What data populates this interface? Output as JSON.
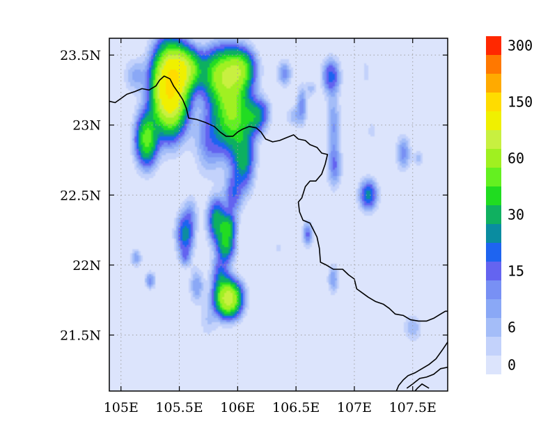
{
  "chart_data": {
    "type": "heatmap",
    "title": "",
    "xlabel": "",
    "ylabel": "",
    "xlim": [
      104.9,
      107.8
    ],
    "ylim": [
      21.1,
      23.62
    ],
    "grid": true,
    "x_ticks": [
      {
        "value": 105.0,
        "label": "105E"
      },
      {
        "value": 105.5,
        "label": "105.5E"
      },
      {
        "value": 106.0,
        "label": "106E"
      },
      {
        "value": 106.5,
        "label": "106.5E"
      },
      {
        "value": 107.0,
        "label": "107E"
      },
      {
        "value": 107.5,
        "label": "107.5E"
      }
    ],
    "y_ticks": [
      {
        "value": 21.5,
        "label": "21.5N"
      },
      {
        "value": 22.0,
        "label": "22N"
      },
      {
        "value": 22.5,
        "label": "22.5N"
      },
      {
        "value": 23.0,
        "label": "23N"
      },
      {
        "value": 23.5,
        "label": "23.5N"
      }
    ],
    "background_value": 0,
    "colorbar": {
      "levels": [
        0,
        3,
        6,
        9,
        12,
        15,
        20,
        25,
        30,
        40,
        50,
        60,
        80,
        100,
        150,
        200,
        250,
        300
      ],
      "colors": [
        "#dce4fc",
        "#c3d2fb",
        "#a4bdf8",
        "#8aa8f6",
        "#7890f4",
        "#6464f0",
        "#1e64f0",
        "#0a8ca0",
        "#10b060",
        "#20dc20",
        "#64f020",
        "#a0f020",
        "#c8f040",
        "#f0f000",
        "#ffdc00",
        "#ffaa00",
        "#ff7800",
        "#ff2800"
      ],
      "labels": [
        {
          "value": 0,
          "label": "0"
        },
        {
          "value": 6,
          "label": "6"
        },
        {
          "value": 15,
          "label": "15"
        },
        {
          "value": 30,
          "label": "30"
        },
        {
          "value": 60,
          "label": "60"
        },
        {
          "value": 150,
          "label": "150"
        },
        {
          "value": 300,
          "label": "300"
        }
      ]
    },
    "features": [
      {
        "lon": 105.42,
        "lat": 23.26,
        "peak": 160,
        "slon": 0.09,
        "slat": 0.18
      },
      {
        "lon": 105.55,
        "lat": 23.4,
        "peak": 70,
        "slon": 0.09,
        "slat": 0.09
      },
      {
        "lon": 105.22,
        "lat": 22.9,
        "peak": 55,
        "slon": 0.06,
        "slat": 0.12
      },
      {
        "lon": 105.12,
        "lat": 23.35,
        "peak": 10,
        "slon": 0.06,
        "slat": 0.08
      },
      {
        "lon": 105.85,
        "lat": 23.36,
        "peak": 58,
        "slon": 0.1,
        "slat": 0.12
      },
      {
        "lon": 106.02,
        "lat": 23.4,
        "peak": 55,
        "slon": 0.08,
        "slat": 0.09
      },
      {
        "lon": 105.95,
        "lat": 23.1,
        "peak": 62,
        "slon": 0.1,
        "slat": 0.18
      },
      {
        "lon": 106.15,
        "lat": 23.06,
        "peak": 30,
        "slon": 0.06,
        "slat": 0.08
      },
      {
        "lon": 105.75,
        "lat": 22.9,
        "peak": 14,
        "slon": 0.08,
        "slat": 0.16
      },
      {
        "lon": 106.05,
        "lat": 22.75,
        "peak": 30,
        "slon": 0.06,
        "slat": 0.14
      },
      {
        "lon": 105.96,
        "lat": 22.5,
        "peak": 18,
        "slon": 0.05,
        "slat": 0.1
      },
      {
        "lon": 106.4,
        "lat": 23.37,
        "peak": 14,
        "slon": 0.04,
        "slat": 0.06
      },
      {
        "lon": 106.8,
        "lat": 23.35,
        "peak": 22,
        "slon": 0.05,
        "slat": 0.08
      },
      {
        "lon": 106.82,
        "lat": 23.0,
        "peak": 12,
        "slon": 0.04,
        "slat": 0.16
      },
      {
        "lon": 106.55,
        "lat": 23.14,
        "peak": 14,
        "slon": 0.03,
        "slat": 0.09
      },
      {
        "lon": 106.83,
        "lat": 22.7,
        "peak": 14,
        "slon": 0.04,
        "slat": 0.1
      },
      {
        "lon": 107.12,
        "lat": 22.5,
        "peak": 28,
        "slon": 0.05,
        "slat": 0.07
      },
      {
        "lon": 107.42,
        "lat": 22.8,
        "peak": 14,
        "slon": 0.04,
        "slat": 0.08
      },
      {
        "lon": 107.55,
        "lat": 22.76,
        "peak": 7,
        "slon": 0.03,
        "slat": 0.04
      },
      {
        "lon": 105.82,
        "lat": 22.32,
        "peak": 35,
        "slon": 0.05,
        "slat": 0.1
      },
      {
        "lon": 105.9,
        "lat": 22.15,
        "peak": 38,
        "slon": 0.05,
        "slat": 0.08
      },
      {
        "lon": 105.92,
        "lat": 22.28,
        "peak": 30,
        "slon": 0.04,
        "slat": 0.06
      },
      {
        "lon": 105.55,
        "lat": 22.22,
        "peak": 28,
        "slon": 0.05,
        "slat": 0.1
      },
      {
        "lon": 105.6,
        "lat": 22.38,
        "peak": 8,
        "slon": 0.04,
        "slat": 0.08
      },
      {
        "lon": 105.85,
        "lat": 21.93,
        "peak": 20,
        "slon": 0.05,
        "slat": 0.09
      },
      {
        "lon": 105.92,
        "lat": 21.76,
        "peak": 95,
        "slon": 0.07,
        "slat": 0.08
      },
      {
        "lon": 105.65,
        "lat": 21.85,
        "peak": 12,
        "slon": 0.04,
        "slat": 0.08
      },
      {
        "lon": 105.75,
        "lat": 21.6,
        "peak": 6,
        "slon": 0.05,
        "slat": 0.08
      },
      {
        "lon": 105.13,
        "lat": 22.05,
        "peak": 12,
        "slon": 0.03,
        "slat": 0.04
      },
      {
        "lon": 105.25,
        "lat": 21.89,
        "peak": 14,
        "slon": 0.03,
        "slat": 0.04
      },
      {
        "lon": 105.55,
        "lat": 22.05,
        "peak": 10,
        "slon": 0.03,
        "slat": 0.04
      },
      {
        "lon": 106.6,
        "lat": 22.22,
        "peak": 16,
        "slon": 0.03,
        "slat": 0.06
      },
      {
        "lon": 106.82,
        "lat": 21.9,
        "peak": 12,
        "slon": 0.03,
        "slat": 0.07
      },
      {
        "lon": 107.5,
        "lat": 21.55,
        "peak": 9,
        "slon": 0.05,
        "slat": 0.06
      },
      {
        "lon": 107.1,
        "lat": 23.38,
        "peak": 6,
        "slon": 0.02,
        "slat": 0.05
      },
      {
        "lon": 107.15,
        "lat": 22.96,
        "peak": 6,
        "slon": 0.02,
        "slat": 0.04
      },
      {
        "lon": 106.35,
        "lat": 22.12,
        "peak": 5,
        "slon": 0.02,
        "slat": 0.03
      },
      {
        "lon": 106.48,
        "lat": 23.06,
        "peak": 8,
        "slon": 0.04,
        "slat": 0.05
      },
      {
        "lon": 106.63,
        "lat": 23.26,
        "peak": 7,
        "slon": 0.03,
        "slat": 0.04
      },
      {
        "lon": 106.23,
        "lat": 23.1,
        "peak": 8,
        "slon": 0.04,
        "slat": 0.06
      }
    ],
    "boundary": [
      [
        104.9,
        23.17
      ],
      [
        104.95,
        23.16
      ],
      [
        105.0,
        23.19
      ],
      [
        105.05,
        23.22
      ],
      [
        105.12,
        23.24
      ],
      [
        105.18,
        23.26
      ],
      [
        105.24,
        23.25
      ],
      [
        105.3,
        23.28
      ],
      [
        105.33,
        23.32
      ],
      [
        105.37,
        23.35
      ],
      [
        105.42,
        23.33
      ],
      [
        105.45,
        23.28
      ],
      [
        105.5,
        23.22
      ],
      [
        105.53,
        23.18
      ],
      [
        105.56,
        23.12
      ],
      [
        105.58,
        23.05
      ],
      [
        105.65,
        23.04
      ],
      [
        105.72,
        23.02
      ],
      [
        105.8,
        22.99
      ],
      [
        105.85,
        22.95
      ],
      [
        105.9,
        22.92
      ],
      [
        105.96,
        22.92
      ],
      [
        106.0,
        22.95
      ],
      [
        106.04,
        22.97
      ],
      [
        106.1,
        22.99
      ],
      [
        106.16,
        22.98
      ],
      [
        106.2,
        22.95
      ],
      [
        106.24,
        22.9
      ],
      [
        106.3,
        22.88
      ],
      [
        106.36,
        22.89
      ],
      [
        106.42,
        22.91
      ],
      [
        106.48,
        22.93
      ],
      [
        106.52,
        22.9
      ],
      [
        106.58,
        22.89
      ],
      [
        106.62,
        22.86
      ],
      [
        106.68,
        22.84
      ],
      [
        106.72,
        22.8
      ],
      [
        106.77,
        22.79
      ],
      [
        106.75,
        22.72
      ],
      [
        106.72,
        22.65
      ],
      [
        106.67,
        22.6
      ],
      [
        106.62,
        22.6
      ],
      [
        106.58,
        22.56
      ],
      [
        106.55,
        22.48
      ],
      [
        106.52,
        22.45
      ],
      [
        106.53,
        22.38
      ],
      [
        106.56,
        22.32
      ],
      [
        106.62,
        22.3
      ],
      [
        106.65,
        22.25
      ],
      [
        106.68,
        22.2
      ],
      [
        106.7,
        22.12
      ],
      [
        106.71,
        22.02
      ],
      [
        106.76,
        22.0
      ],
      [
        106.82,
        21.97
      ],
      [
        106.9,
        21.97
      ],
      [
        106.95,
        21.93
      ],
      [
        107.0,
        21.9
      ],
      [
        107.02,
        21.83
      ],
      [
        107.07,
        21.8
      ],
      [
        107.12,
        21.77
      ],
      [
        107.18,
        21.74
      ],
      [
        107.25,
        21.72
      ],
      [
        107.3,
        21.69
      ],
      [
        107.35,
        21.65
      ],
      [
        107.42,
        21.64
      ],
      [
        107.48,
        21.61
      ],
      [
        107.55,
        21.6
      ],
      [
        107.62,
        21.6
      ],
      [
        107.68,
        21.62
      ],
      [
        107.74,
        21.65
      ],
      [
        107.78,
        21.67
      ],
      [
        107.8,
        21.67
      ]
    ],
    "coast": [
      [
        [
          107.8,
          21.45
        ],
        [
          107.76,
          21.4
        ],
        [
          107.7,
          21.33
        ],
        [
          107.64,
          21.29
        ],
        [
          107.58,
          21.26
        ],
        [
          107.52,
          21.23
        ],
        [
          107.46,
          21.21
        ],
        [
          107.42,
          21.18
        ],
        [
          107.38,
          21.14
        ],
        [
          107.36,
          21.1
        ]
      ],
      [
        [
          107.8,
          21.27
        ],
        [
          107.74,
          21.26
        ],
        [
          107.68,
          21.22
        ],
        [
          107.62,
          21.2
        ],
        [
          107.56,
          21.19
        ],
        [
          107.5,
          21.15
        ],
        [
          107.45,
          21.12
        ]
      ],
      [
        [
          107.64,
          21.12
        ],
        [
          107.58,
          21.15
        ],
        [
          107.54,
          21.12
        ],
        [
          107.52,
          21.1
        ]
      ]
    ]
  }
}
